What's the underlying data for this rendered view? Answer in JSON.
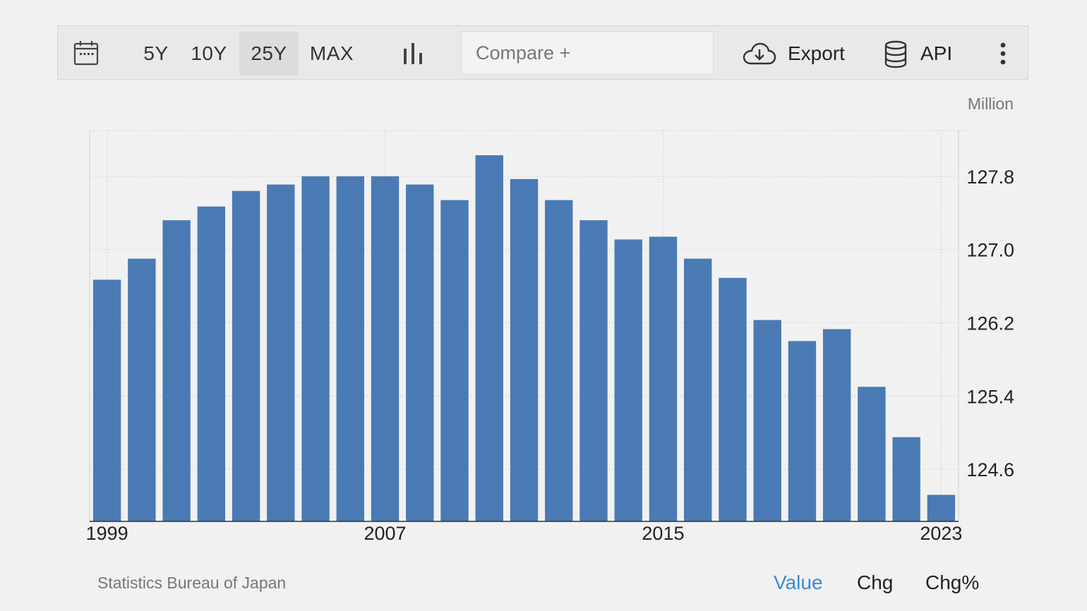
{
  "toolbar": {
    "calendar_icon": "calendar-icon",
    "ranges": [
      "5Y",
      "10Y",
      "25Y",
      "MAX"
    ],
    "active_range": "25Y",
    "chart_type_icon": "bar-chart-icon",
    "compare_placeholder": "Compare +",
    "export_label": "Export",
    "export_icon": "cloud-download-icon",
    "api_label": "API",
    "api_icon": "database-icon",
    "more_icon": "more-vertical-icon"
  },
  "unit": "Million",
  "source": "Statistics Bureau of Japan",
  "view_tabs": [
    "Value",
    "Chg",
    "Chg%"
  ],
  "active_view": "Value",
  "colors": {
    "bar": "#4a7ab4",
    "accent": "#3a8bd6"
  },
  "chart_data": {
    "type": "bar",
    "title": "",
    "xlabel": "",
    "ylabel": "Million",
    "categories": [
      "1999",
      "2000",
      "2001",
      "2002",
      "2003",
      "2004",
      "2005",
      "2006",
      "2007",
      "2008",
      "2009",
      "2010",
      "2011",
      "2012",
      "2013",
      "2014",
      "2015",
      "2016",
      "2017",
      "2018",
      "2019",
      "2020",
      "2021",
      "2022",
      "2023"
    ],
    "values": [
      126.67,
      126.9,
      127.32,
      127.47,
      127.64,
      127.71,
      127.8,
      127.8,
      127.8,
      127.71,
      127.54,
      128.03,
      127.77,
      127.54,
      127.32,
      127.11,
      127.14,
      126.9,
      126.69,
      126.23,
      126.0,
      126.13,
      125.5,
      124.95,
      124.32
    ],
    "ylim": [
      124.03,
      128.3
    ],
    "yticks": [
      124.6,
      125.4,
      126.2,
      127.0,
      127.8
    ],
    "ytick_labels": [
      "124.6",
      "125.4",
      "126.2",
      "127.0",
      "127.8"
    ],
    "xtick_labels": [
      "1999",
      "2007",
      "2015",
      "2023"
    ],
    "grid": true
  }
}
